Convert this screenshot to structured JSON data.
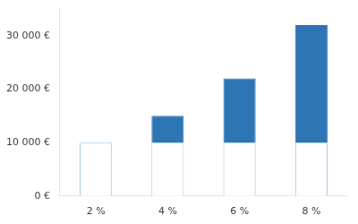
{
  "chart_data": {
    "type": "bar",
    "stacked": true,
    "categories": [
      "2 %",
      "4 %",
      "6 %",
      "8 %"
    ],
    "series": [
      {
        "color": "#ffffff",
        "values": [
          10000,
          10000,
          10000,
          10000
        ]
      },
      {
        "color": "#2e75b6",
        "values": [
          0,
          5000,
          12000,
          22000
        ]
      }
    ],
    "ylim": [
      0,
      35000
    ],
    "yticks": [
      {
        "value": 0,
        "label": "0 €"
      },
      {
        "value": 10000,
        "label": "10 000 €"
      },
      {
        "value": 20000,
        "label": "20 000 €"
      },
      {
        "value": 30000,
        "label": "30 000 €"
      }
    ],
    "grid": false
  }
}
